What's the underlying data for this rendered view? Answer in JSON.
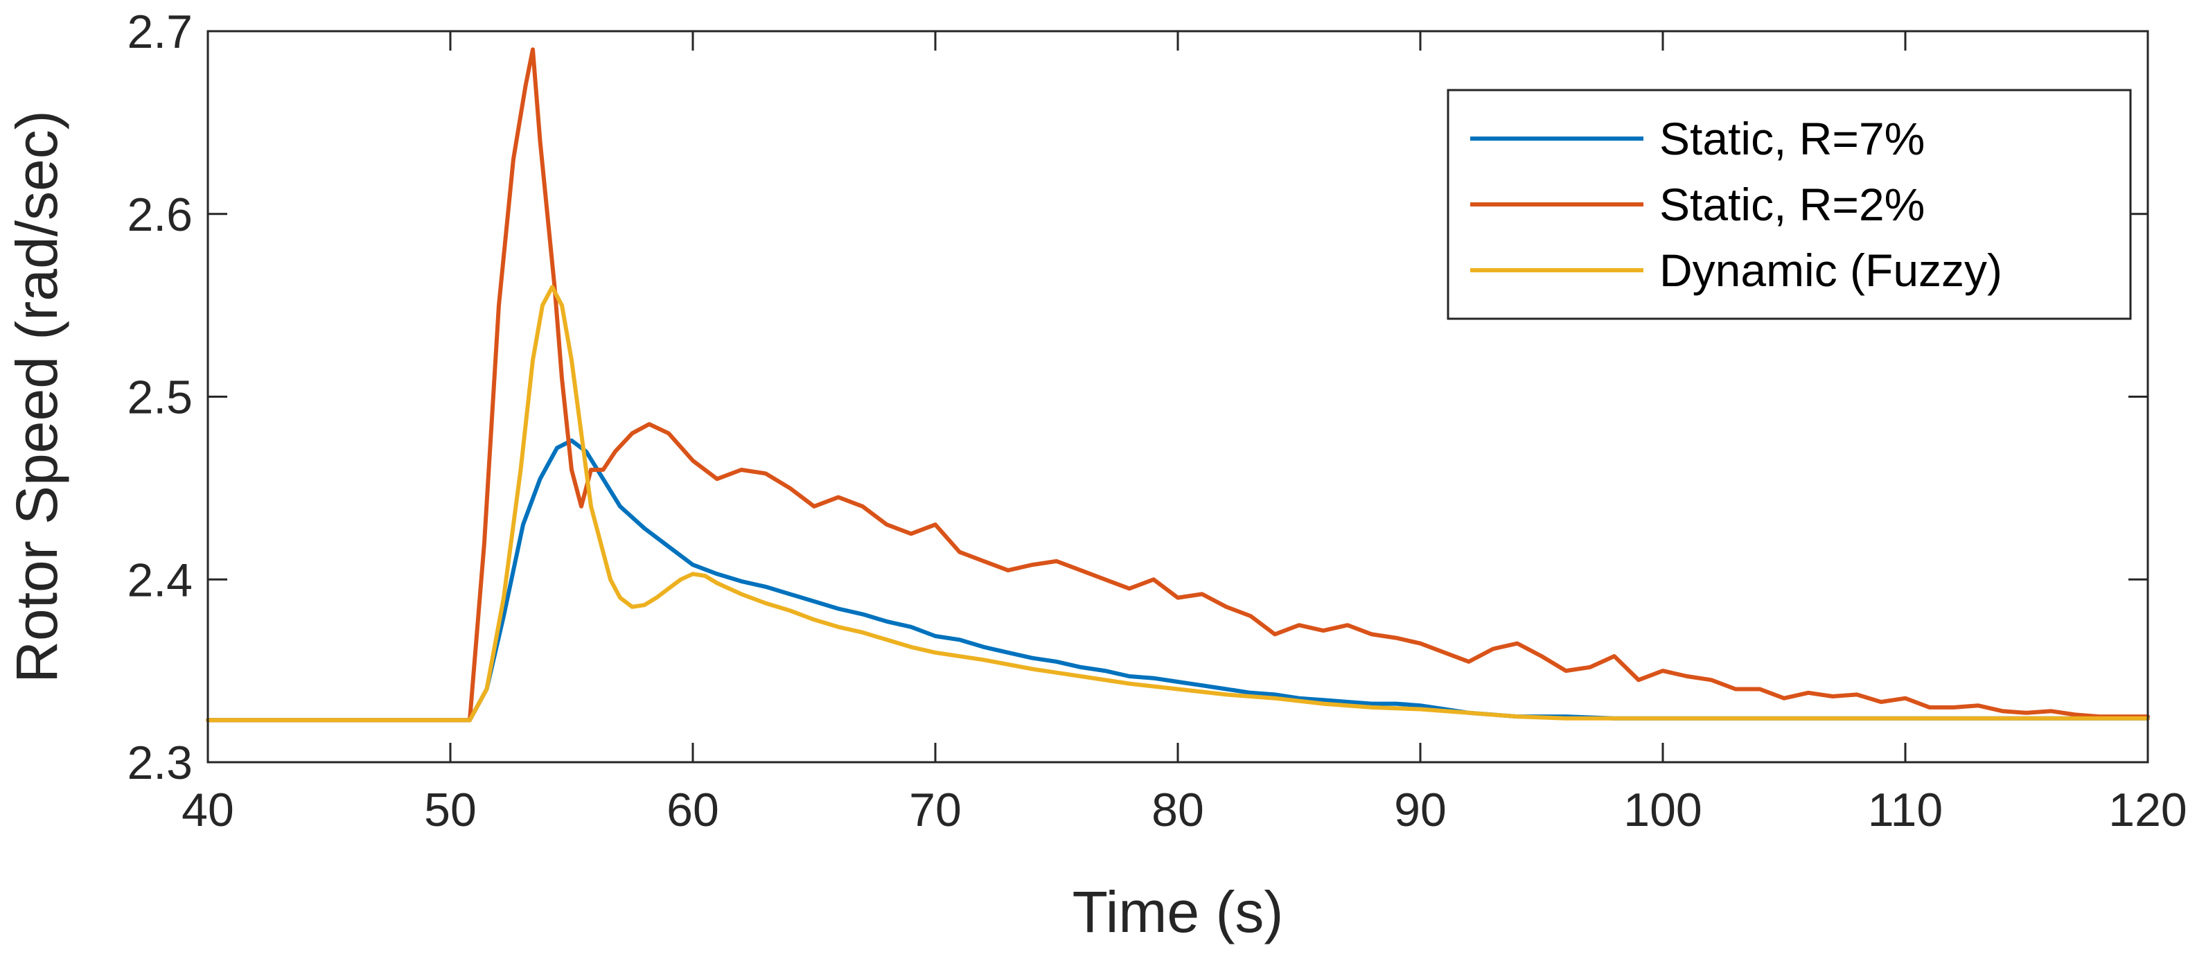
{
  "chart_data": {
    "type": "line",
    "title": "",
    "xlabel": "Time (s)",
    "ylabel": "Rotor Speed (rad/sec)",
    "xlim": [
      40,
      120
    ],
    "ylim": [
      2.3,
      2.7
    ],
    "xticks": [
      40,
      50,
      60,
      70,
      80,
      90,
      100,
      110,
      120
    ],
    "xtick_labels": [
      "40",
      "50",
      "60",
      "70",
      "80",
      "90",
      "100",
      "110",
      "120"
    ],
    "yticks": [
      2.3,
      2.4,
      2.5,
      2.6,
      2.7
    ],
    "ytick_labels": [
      "2.3",
      "2.4",
      "2.5",
      "2.6",
      "2.7"
    ],
    "grid": false,
    "legend_position": "top-right",
    "series": [
      {
        "name": "Static, R=7%",
        "color": "#0072BD",
        "x": [
          40,
          50,
          50.8,
          51.5,
          52.2,
          53,
          53.7,
          54.4,
          55,
          55.6,
          56.3,
          57,
          58,
          59,
          60,
          61,
          62,
          63,
          64,
          65,
          66,
          67,
          68,
          69,
          70,
          71,
          72,
          73,
          74,
          75,
          76,
          77,
          78,
          79,
          80,
          81,
          82,
          83,
          84,
          85,
          86,
          87,
          88,
          89,
          90,
          91,
          92,
          93,
          94,
          95,
          96,
          98,
          100,
          102,
          105,
          108,
          112,
          116,
          120
        ],
        "y": [
          2.323,
          2.323,
          2.323,
          2.34,
          2.38,
          2.43,
          2.455,
          2.472,
          2.476,
          2.47,
          2.455,
          2.44,
          2.428,
          2.418,
          2.408,
          2.403,
          2.399,
          2.396,
          2.392,
          2.388,
          2.384,
          2.381,
          2.377,
          2.374,
          2.369,
          2.367,
          2.363,
          2.36,
          2.357,
          2.355,
          2.352,
          2.35,
          2.347,
          2.346,
          2.344,
          2.342,
          2.34,
          2.338,
          2.337,
          2.335,
          2.334,
          2.333,
          2.332,
          2.332,
          2.331,
          2.329,
          2.327,
          2.326,
          2.325,
          2.325,
          2.325,
          2.324,
          2.324,
          2.324,
          2.324,
          2.324,
          2.324,
          2.324,
          2.324
        ]
      },
      {
        "name": "Static, R=2%",
        "color": "#D95319",
        "x": [
          40,
          50,
          50.8,
          51.4,
          52,
          52.6,
          53.1,
          53.4,
          53.7,
          54,
          54.3,
          54.6,
          55,
          55.4,
          55.8,
          56.3,
          56.8,
          57.5,
          58.2,
          59,
          60,
          61,
          62,
          63,
          64,
          65,
          66,
          67,
          68,
          69,
          70,
          71,
          72,
          73,
          74,
          75,
          76,
          77,
          78,
          79,
          80,
          81,
          82,
          83,
          84,
          85,
          86,
          87,
          88,
          89,
          90,
          91,
          92,
          93,
          94,
          95,
          96,
          97,
          98,
          99,
          100,
          101,
          102,
          103,
          104,
          105,
          106,
          107,
          108,
          109,
          110,
          111,
          112,
          113,
          114,
          115,
          116,
          117,
          118,
          119,
          120
        ],
        "y": [
          2.323,
          2.323,
          2.323,
          2.42,
          2.55,
          2.63,
          2.67,
          2.69,
          2.64,
          2.6,
          2.56,
          2.51,
          2.46,
          2.44,
          2.46,
          2.46,
          2.47,
          2.48,
          2.485,
          2.48,
          2.465,
          2.455,
          2.46,
          2.458,
          2.45,
          2.44,
          2.445,
          2.44,
          2.43,
          2.425,
          2.43,
          2.415,
          2.41,
          2.405,
          2.408,
          2.41,
          2.405,
          2.4,
          2.395,
          2.4,
          2.39,
          2.392,
          2.385,
          2.38,
          2.37,
          2.375,
          2.372,
          2.375,
          2.37,
          2.368,
          2.365,
          2.36,
          2.355,
          2.362,
          2.365,
          2.358,
          2.35,
          2.352,
          2.358,
          2.345,
          2.35,
          2.347,
          2.345,
          2.34,
          2.34,
          2.335,
          2.338,
          2.336,
          2.337,
          2.333,
          2.335,
          2.33,
          2.33,
          2.331,
          2.328,
          2.327,
          2.328,
          2.326,
          2.325,
          2.325,
          2.325
        ]
      },
      {
        "name": "Dynamic (Fuzzy)",
        "color": "#EDB120",
        "x": [
          40,
          50,
          50.8,
          51.5,
          52.2,
          52.9,
          53.4,
          53.8,
          54.2,
          54.6,
          55,
          55.4,
          55.8,
          56.2,
          56.6,
          57,
          57.5,
          58,
          58.5,
          59,
          59.5,
          60,
          60.5,
          61,
          62,
          63,
          64,
          65,
          66,
          67,
          68,
          69,
          70,
          72,
          74,
          76,
          78,
          80,
          82,
          84,
          86,
          88,
          90,
          92,
          94,
          96,
          100,
          105,
          110,
          115,
          120
        ],
        "y": [
          2.323,
          2.323,
          2.323,
          2.34,
          2.39,
          2.46,
          2.52,
          2.55,
          2.56,
          2.55,
          2.52,
          2.48,
          2.44,
          2.42,
          2.4,
          2.39,
          2.385,
          2.386,
          2.39,
          2.395,
          2.4,
          2.403,
          2.402,
          2.398,
          2.392,
          2.387,
          2.383,
          2.378,
          2.374,
          2.371,
          2.367,
          2.363,
          2.36,
          2.356,
          2.351,
          2.347,
          2.343,
          2.34,
          2.337,
          2.335,
          2.332,
          2.33,
          2.329,
          2.327,
          2.325,
          2.324,
          2.324,
          2.324,
          2.324,
          2.324,
          2.324
        ]
      }
    ]
  }
}
